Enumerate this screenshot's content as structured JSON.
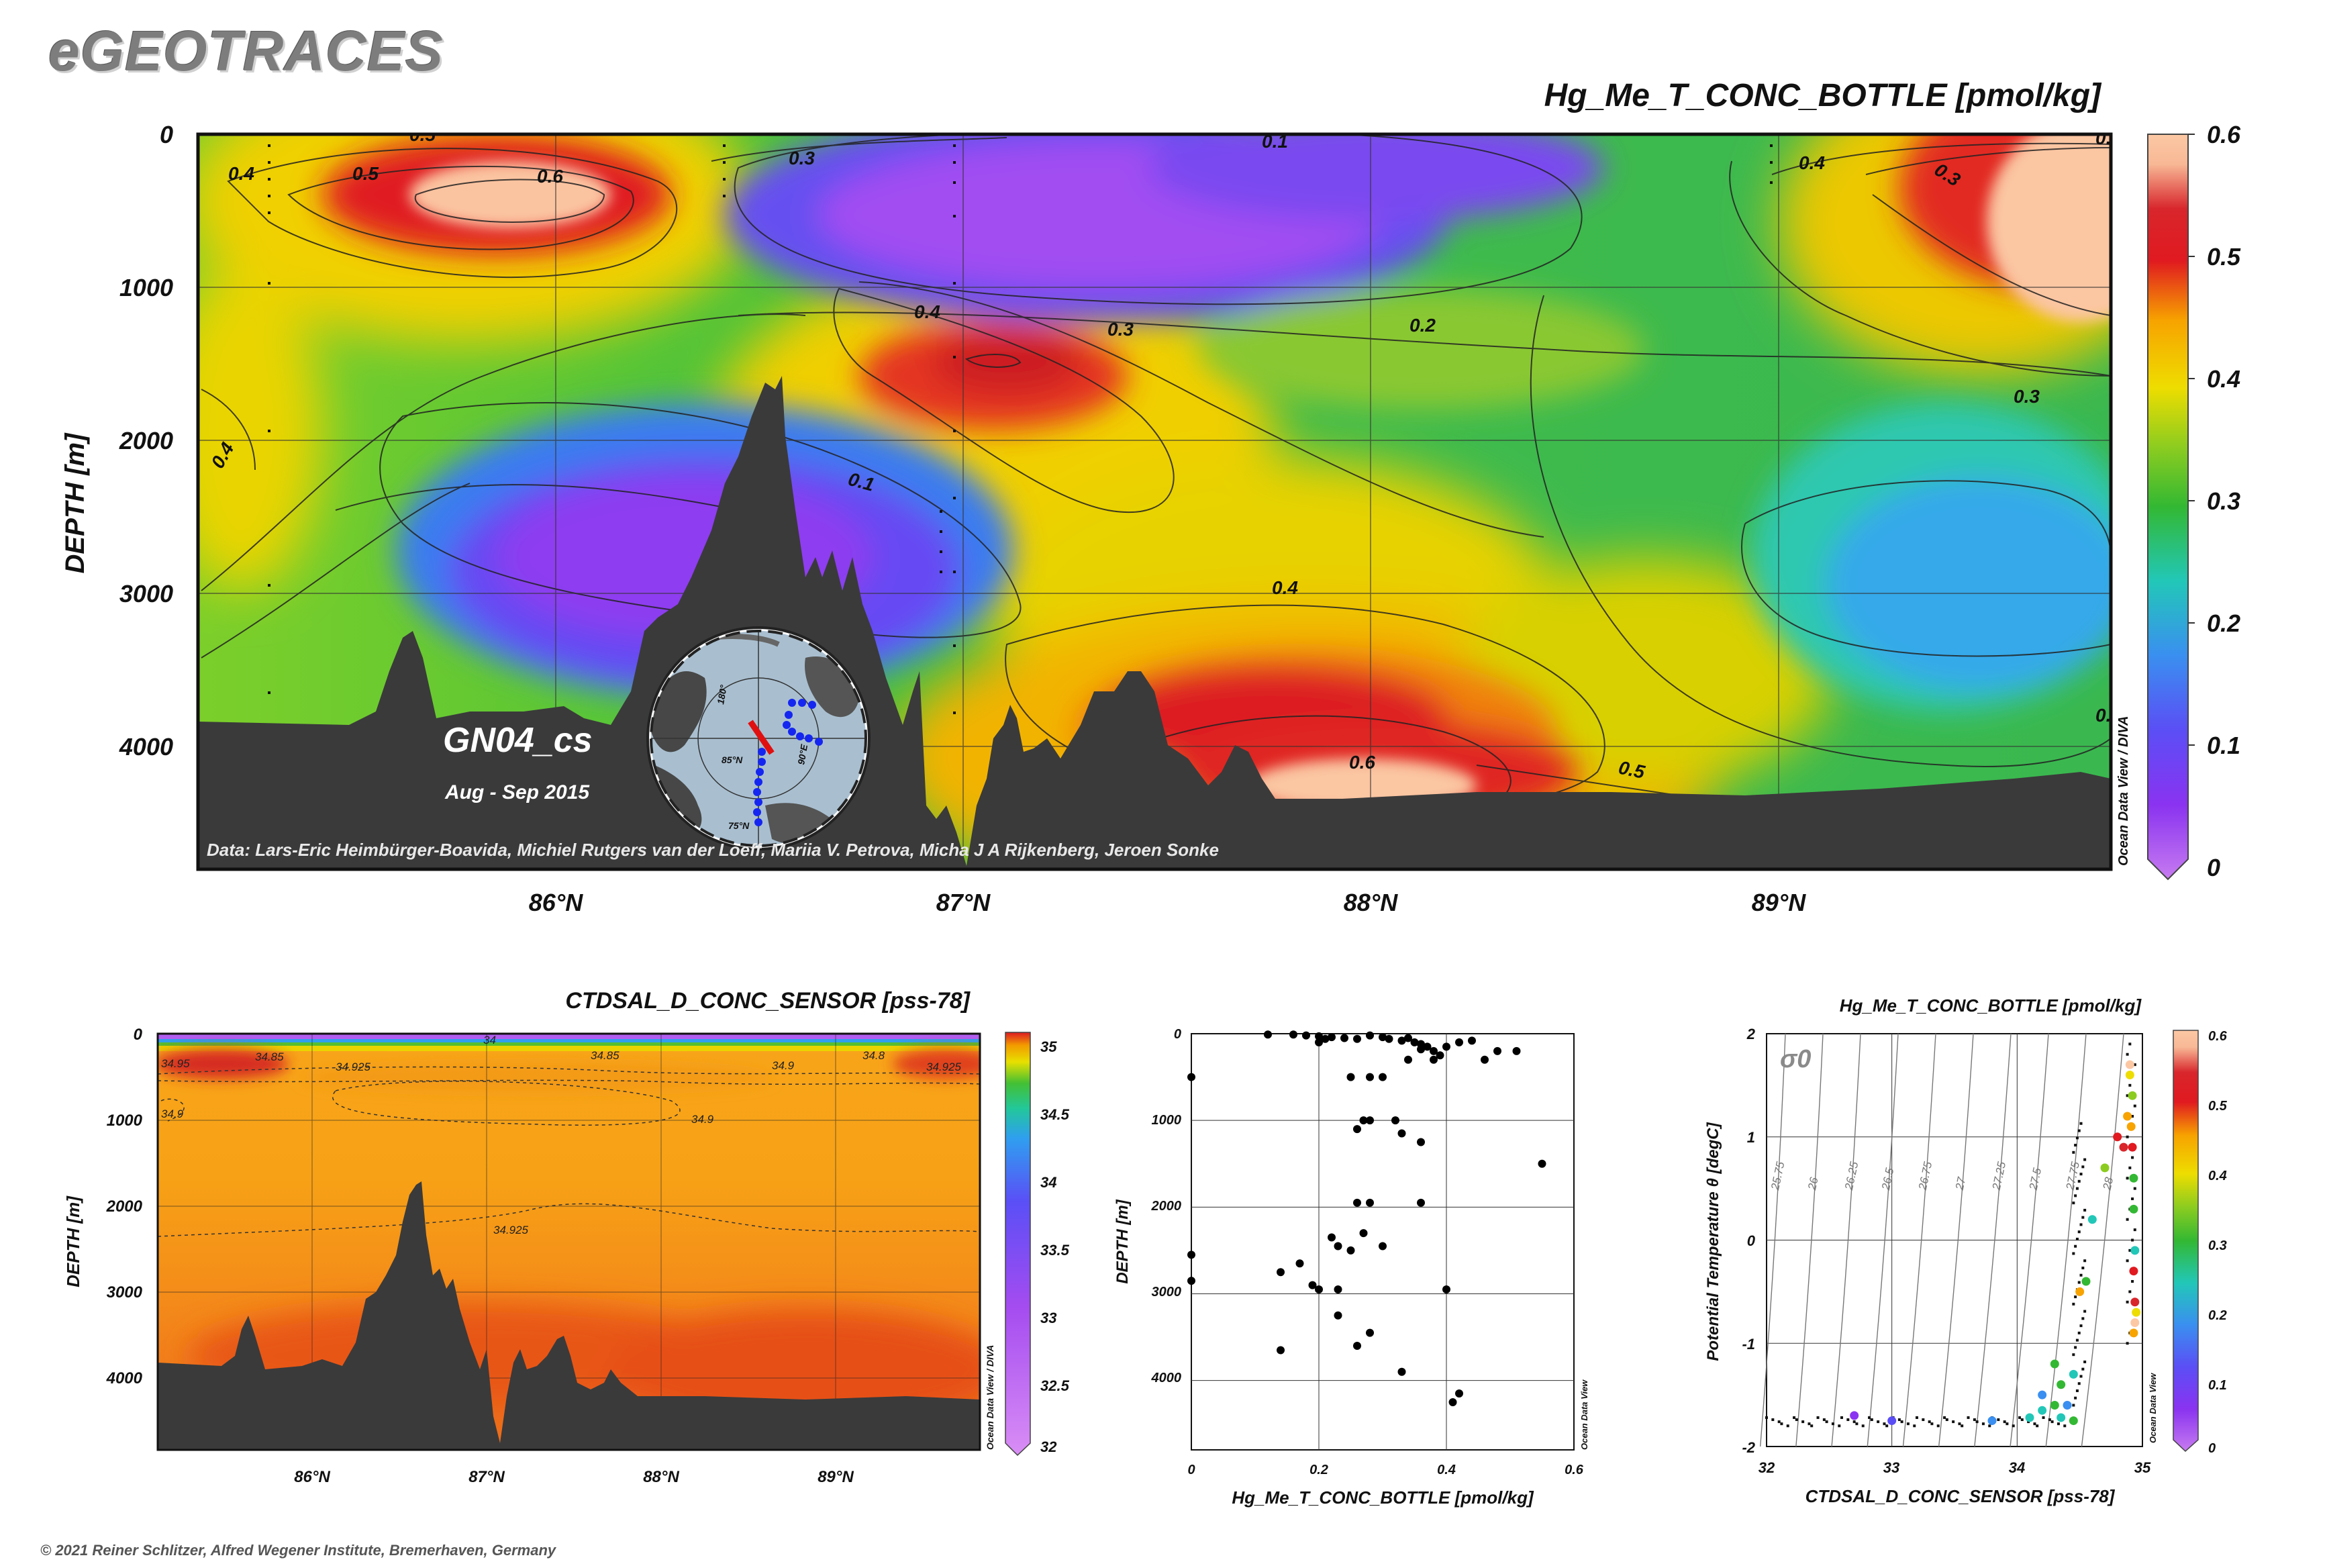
{
  "header": {
    "logo": "eGEOTRACES",
    "copyright": "© 2021 Reiner Schlitzer, Alfred Wegener Institute, Bremerhaven, Germany"
  },
  "main_section": {
    "title": "Hg_Me_T_CONC_BOTTLE [pmol/kg]",
    "ylabel": "DEPTH [m]",
    "yticks": [
      "0",
      "1000",
      "2000",
      "3000",
      "4000"
    ],
    "xticks": [
      "86°N",
      "87°N",
      "88°N",
      "89°N"
    ],
    "colorbar_ticks": [
      "0.6",
      "0.5",
      "0.4",
      "0.3",
      "0.2",
      "0.1",
      "0"
    ],
    "colorbar_label": "Ocean Data View / DIVA",
    "cruise": "GN04_cs",
    "period": "Aug - Sep 2015",
    "credits": "Data: Lars-Eric Heimbürger-Boavida, Michiel Rutgers van der Loeff, Mariia V. Petrova, Micha J A Rijkenberg, Jeroen Sonke",
    "contour_labels": [
      "0.5",
      "0.3",
      "0.1",
      "0.4",
      "0.4",
      "0.5",
      "0.6",
      "0.3",
      "0.4",
      "0.3",
      "0.2",
      "0.3",
      "0.4",
      "0.6",
      "0.1",
      "0.4",
      "0.6",
      "0.5",
      "0.1"
    ]
  },
  "inset_map": {
    "labels": [
      "85°N",
      "90°E",
      "75°N",
      "180°"
    ]
  },
  "salinity_section": {
    "title": "CTDSAL_D_CONC_SENSOR [pss-78]",
    "ylabel": "DEPTH [m]",
    "yticks": [
      "0",
      "1000",
      "2000",
      "3000",
      "4000"
    ],
    "xticks": [
      "86°N",
      "87°N",
      "88°N",
      "89°N"
    ],
    "colorbar_ticks": [
      "35",
      "34.5",
      "34",
      "33.5",
      "33",
      "32.5",
      "32"
    ],
    "colorbar_label": "Ocean Data View / DIVA",
    "contour_labels": [
      "34.95",
      "34.85",
      "34.925",
      "34",
      "34.85",
      "34.9",
      "34.8",
      "34.925",
      "34.9",
      "34.9",
      "34.925"
    ]
  },
  "chart_data": [
    {
      "type": "heatmap",
      "title": "Hg_Me_T_CONC_BOTTLE [pmol/kg]",
      "xlabel": "",
      "ylabel": "DEPTH [m]",
      "xlim": [
        85.13,
        89.8
      ],
      "ylim": [
        4800,
        0
      ],
      "colorbar_range": [
        0,
        0.6
      ],
      "note_regions": [
        {
          "lat": 85.5,
          "depth": 400,
          "value": 0.6
        },
        {
          "lat": 86.7,
          "depth": 450,
          "value": 0.05
        },
        {
          "lat": 87.1,
          "depth": 1450,
          "value": 0.5
        },
        {
          "lat": 86.1,
          "depth": 2800,
          "value": 0.05
        },
        {
          "lat": 87.9,
          "depth": 3900,
          "value": 0.55
        },
        {
          "lat": 89.6,
          "depth": 350,
          "value": 0.6
        },
        {
          "lat": 89.5,
          "depth": 2800,
          "value": 0.2
        }
      ]
    },
    {
      "type": "heatmap",
      "title": "CTDSAL_D_CONC_SENSOR [pss-78]",
      "xlabel": "",
      "ylabel": "DEPTH [m]",
      "xlim": [
        85.13,
        89.8
      ],
      "ylim": [
        4800,
        0
      ],
      "colorbar_range": [
        32,
        35
      ],
      "note_regions": [
        {
          "depth": 0,
          "value": 32.5
        },
        {
          "depth": 150,
          "value": 34.95
        },
        {
          "depth": 1000,
          "value": 34.9
        },
        {
          "depth": 3500,
          "value": 34.94
        }
      ]
    },
    {
      "type": "scatter",
      "title": "",
      "xlabel": "Hg_Me_T_CONC_BOTTLE [pmol/kg]",
      "ylabel": "DEPTH [m]",
      "xlim": [
        0,
        0.6
      ],
      "ylim": [
        4800,
        0
      ],
      "xticks": [
        "0",
        "0.2",
        "0.4",
        "0.6"
      ],
      "yticks": [
        "0",
        "1000",
        "2000",
        "3000",
        "4000"
      ],
      "side_label": "Ocean Data View",
      "points": [
        [
          0.12,
          10
        ],
        [
          0.16,
          10
        ],
        [
          0.18,
          20
        ],
        [
          0.2,
          30
        ],
        [
          0.22,
          40
        ],
        [
          0.24,
          50
        ],
        [
          0.26,
          60
        ],
        [
          0.28,
          20
        ],
        [
          0.3,
          40
        ],
        [
          0.31,
          60
        ],
        [
          0.33,
          80
        ],
        [
          0.35,
          100
        ],
        [
          0.36,
          120
        ],
        [
          0.37,
          150
        ],
        [
          0.38,
          200
        ],
        [
          0.39,
          250
        ],
        [
          0.4,
          150
        ],
        [
          0.42,
          100
        ],
        [
          0.44,
          80
        ],
        [
          0.46,
          300
        ],
        [
          0.48,
          200
        ],
        [
          0.51,
          200
        ],
        [
          0.2,
          100
        ],
        [
          0.21,
          60
        ],
        [
          0.34,
          50
        ],
        [
          0.36,
          180
        ],
        [
          0.38,
          300
        ],
        [
          0.0,
          500
        ],
        [
          0.25,
          500
        ],
        [
          0.28,
          500
        ],
        [
          0.3,
          500
        ],
        [
          0.34,
          300
        ],
        [
          0.27,
          1000
        ],
        [
          0.28,
          1000
        ],
        [
          0.32,
          1000
        ],
        [
          0.26,
          1100
        ],
        [
          0.33,
          1150
        ],
        [
          0.36,
          1250
        ],
        [
          0.55,
          1500
        ],
        [
          0.26,
          1950
        ],
        [
          0.28,
          1950
        ],
        [
          0.36,
          1950
        ],
        [
          0.0,
          2550
        ],
        [
          0.22,
          2350
        ],
        [
          0.23,
          2450
        ],
        [
          0.25,
          2500
        ],
        [
          0.27,
          2300
        ],
        [
          0.3,
          2450
        ],
        [
          0.17,
          2650
        ],
        [
          0.14,
          2750
        ],
        [
          0.19,
          2900
        ],
        [
          0.2,
          2950
        ],
        [
          0.23,
          2950
        ],
        [
          0.0,
          2850
        ],
        [
          0.4,
          2950
        ],
        [
          0.23,
          3250
        ],
        [
          0.28,
          3450
        ],
        [
          0.26,
          3600
        ],
        [
          0.14,
          3650
        ],
        [
          0.33,
          3900
        ],
        [
          0.42,
          4150
        ],
        [
          0.41,
          4250
        ]
      ]
    },
    {
      "type": "scatter",
      "title": "Hg_Me_T_CONC_BOTTLE [pmol/kg]",
      "xlabel": "CTDSAL_D_CONC_SENSOR [pss-78]",
      "ylabel": "Potential Temperature θ [degC]",
      "xlim": [
        32,
        35
      ],
      "ylim": [
        -2,
        2
      ],
      "xticks": [
        "32",
        "33",
        "34",
        "35"
      ],
      "yticks": [
        "2",
        "1",
        "0",
        "-1",
        "-2"
      ],
      "sigma_label": "σ0",
      "isopycnals": [
        "25.75",
        "26",
        "26.25",
        "26.5",
        "26.75",
        "27",
        "27.25",
        "27.5",
        "27.75",
        "28"
      ],
      "colorbar_ticks": [
        "0.6",
        "0.5",
        "0.4",
        "0.3",
        "0.2",
        "0.1",
        "0"
      ],
      "side_label": "Ocean Data View",
      "colored_points": [
        [
          32.7,
          -1.7,
          0.1
        ],
        [
          33.0,
          -1.75,
          0.12
        ],
        [
          33.8,
          -1.75,
          0.2
        ],
        [
          34.1,
          -1.72,
          0.25
        ],
        [
          34.2,
          -1.65,
          0.28
        ],
        [
          34.3,
          -1.6,
          0.3
        ],
        [
          34.35,
          -1.72,
          0.27
        ],
        [
          34.4,
          -1.6,
          0.22
        ],
        [
          34.45,
          -1.75,
          0.3
        ],
        [
          34.45,
          -1.3,
          0.28
        ],
        [
          34.5,
          -0.5,
          0.45
        ],
        [
          34.55,
          -0.4,
          0.33
        ],
        [
          34.6,
          0.2,
          0.25
        ],
        [
          34.7,
          0.7,
          0.35
        ],
        [
          34.8,
          1.0,
          0.5
        ],
        [
          34.85,
          0.9,
          0.55
        ],
        [
          34.88,
          1.2,
          0.45
        ],
        [
          34.9,
          1.6,
          0.42
        ],
        [
          34.9,
          1.7,
          0.6
        ],
        [
          34.92,
          1.4,
          0.38
        ],
        [
          34.93,
          0.6,
          0.3
        ],
        [
          34.93,
          0.3,
          0.32
        ],
        [
          34.94,
          -0.1,
          0.28
        ],
        [
          34.93,
          -0.3,
          0.5
        ],
        [
          34.94,
          -0.6,
          0.55
        ],
        [
          34.94,
          -0.8,
          0.6
        ],
        [
          34.93,
          -0.9,
          0.45
        ],
        [
          34.95,
          -0.7,
          0.4
        ],
        [
          34.92,
          0.9,
          0.5
        ],
        [
          34.91,
          1.1,
          0.48
        ],
        [
          34.3,
          -1.2,
          0.32
        ],
        [
          34.2,
          -1.5,
          0.22
        ],
        [
          34.35,
          -1.4,
          0.3
        ]
      ]
    }
  ]
}
